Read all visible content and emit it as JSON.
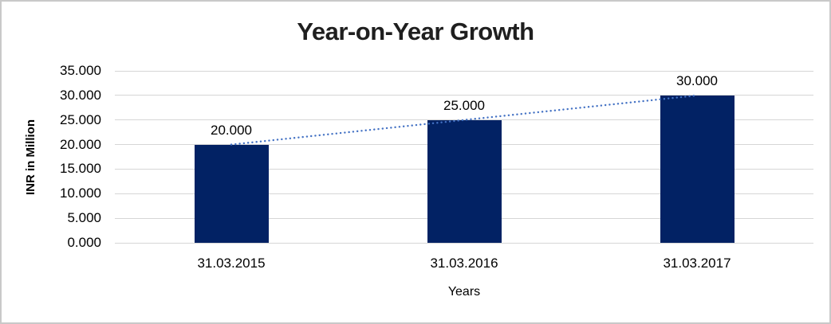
{
  "chart_data": {
    "type": "bar",
    "title": "Year-on-Year Growth",
    "categories": [
      "31.03.2015",
      "31.03.2016",
      "31.03.2017"
    ],
    "values": [
      20,
      25,
      30
    ],
    "value_labels": [
      "20.000",
      "25.000",
      "30.000"
    ],
    "xlabel": "Years",
    "ylabel": "INR in Million",
    "ylim": [
      0,
      35
    ],
    "ytick_step": 5,
    "ytick_labels": [
      "0.000",
      "5.000",
      "10.000",
      "15.000",
      "20.000",
      "25.000",
      "30.000",
      "35.000"
    ],
    "grid": true,
    "legend": "none",
    "trendline": {
      "type": "linear",
      "style": "dotted",
      "connects": "bar tops (20 to 30)"
    },
    "colors": {
      "bar": "#022264",
      "trendline": "#4472c4",
      "gridline": "#d6d6d6",
      "title_text": "#1f1f1f",
      "axis_text": "#000000",
      "frame_border": "#c9c9c9",
      "background": "#ffffff"
    }
  }
}
